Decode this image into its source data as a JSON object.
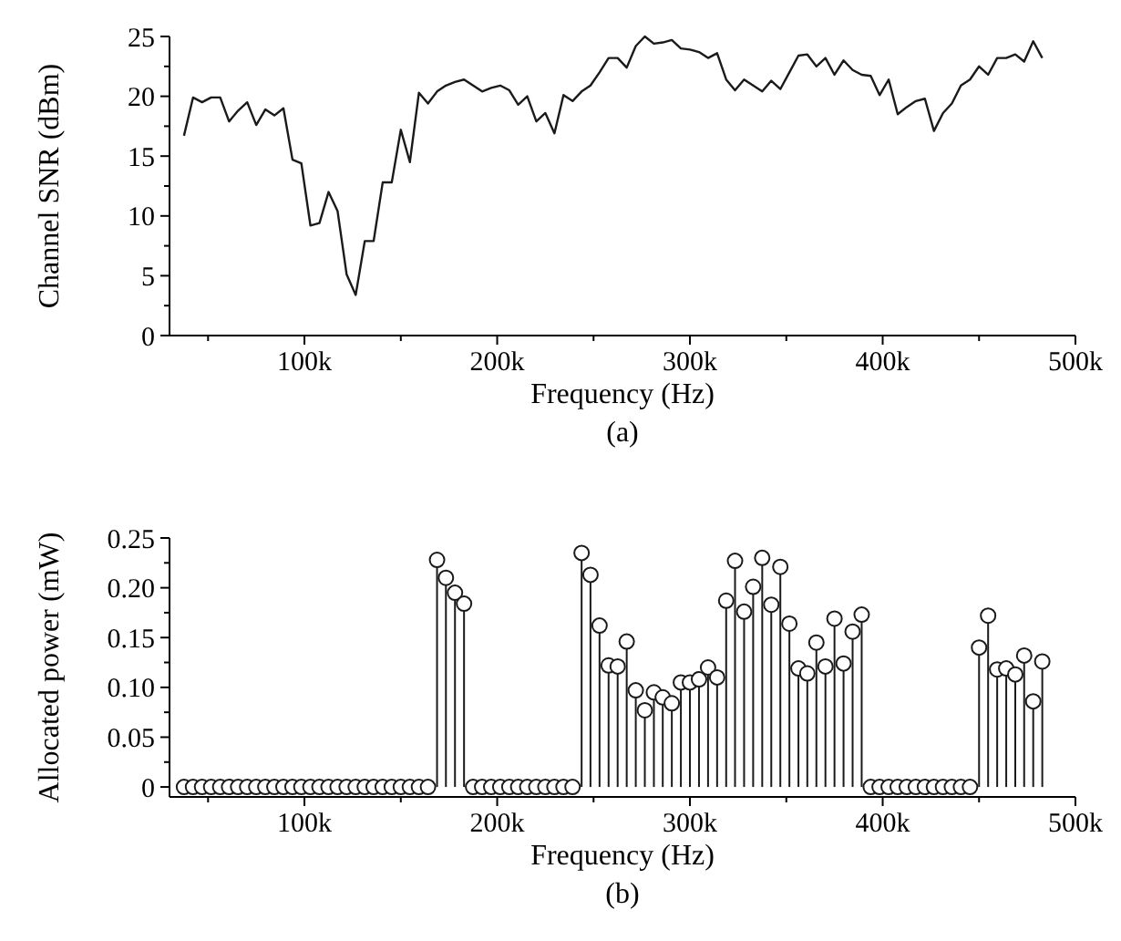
{
  "chart_data": [
    {
      "type": "line",
      "xlabel": "Frequency (Hz)",
      "ylabel": "Channel SNR (dBm)",
      "annotations": [
        "(a)"
      ],
      "marker": "none",
      "line_style": "solid",
      "x": [
        37500,
        42200,
        46900,
        51600,
        56300,
        60900,
        65600,
        70300,
        75000,
        79700,
        84400,
        89100,
        93800,
        98400,
        103100,
        107800,
        112500,
        117200,
        121900,
        126600,
        131300,
        135900,
        140600,
        145300,
        150000,
        154700,
        159400,
        164100,
        168800,
        173400,
        178100,
        182800,
        187500,
        192200,
        196900,
        201600,
        206300,
        210900,
        215600,
        220300,
        225000,
        229700,
        234400,
        239100,
        243800,
        248400,
        253100,
        257800,
        262500,
        267200,
        271900,
        276600,
        281300,
        285900,
        290600,
        295300,
        300000,
        304700,
        309400,
        314100,
        318800,
        323400,
        328100,
        332800,
        337500,
        342200,
        346900,
        351600,
        356300,
        360900,
        365600,
        370300,
        375000,
        379700,
        384400,
        389100,
        393800,
        398400,
        403100,
        407800,
        412500,
        417200,
        421900,
        426600,
        431300,
        435900,
        440600,
        445300,
        450000,
        454700,
        459400,
        464100,
        468800,
        473400,
        478100,
        482800
      ],
      "series": [
        {
          "color": "#1a1a1a",
          "values": [
            16.7,
            19.9,
            19.5,
            19.9,
            19.9,
            17.9,
            18.8,
            19.5,
            17.6,
            18.9,
            18.4,
            19.0,
            14.7,
            14.4,
            9.2,
            9.4,
            12.0,
            10.4,
            5.1,
            3.4,
            7.9,
            7.9,
            12.8,
            12.8,
            17.2,
            14.5,
            20.3,
            19.4,
            20.4,
            20.9,
            21.2,
            21.4,
            20.9,
            20.4,
            20.7,
            20.9,
            20.5,
            19.3,
            20.0,
            17.9,
            18.6,
            16.9,
            20.1,
            19.6,
            20.4,
            20.9,
            22.0,
            23.2,
            23.2,
            22.4,
            24.2,
            25.0,
            24.4,
            24.5,
            24.7,
            24.0,
            23.9,
            23.7,
            23.2,
            23.6,
            21.4,
            20.5,
            21.4,
            20.9,
            20.4,
            21.3,
            20.6,
            22.0,
            23.4,
            23.5,
            22.5,
            23.2,
            21.8,
            23.0,
            22.2,
            21.8,
            21.7,
            20.1,
            21.4,
            18.5,
            19.1,
            19.6,
            19.8,
            17.1,
            18.6,
            19.4,
            20.9,
            21.4,
            22.5,
            21.8,
            23.2,
            23.2,
            23.5,
            22.9,
            24.6,
            23.2
          ]
        }
      ],
      "xlim": [
        30000,
        500000
      ],
      "xticks": [
        {
          "value": 50000,
          "label": null
        },
        {
          "value": 100000,
          "label": "100k"
        },
        {
          "value": 150000,
          "label": null
        },
        {
          "value": 200000,
          "label": "200k"
        },
        {
          "value": 250000,
          "label": null
        },
        {
          "value": 300000,
          "label": "300k"
        },
        {
          "value": 350000,
          "label": null
        },
        {
          "value": 400000,
          "label": "400k"
        },
        {
          "value": 450000,
          "label": null
        },
        {
          "value": 500000,
          "label": "500k"
        }
      ],
      "ylim": [
        0,
        25
      ],
      "yticks": [
        0,
        {
          "value": 2.5,
          "label": null
        },
        5,
        {
          "value": 7.5,
          "label": null
        },
        10,
        {
          "value": 12.5,
          "label": null
        },
        15,
        {
          "value": 17.5,
          "label": null
        },
        20,
        {
          "value": 22.5,
          "label": null
        },
        25
      ]
    },
    {
      "type": "lollipop",
      "xlabel": "Frequency (Hz)",
      "ylabel": "Allocated power (mW)",
      "annotations": [
        "(b)"
      ],
      "marker": "circle",
      "x": [
        37500,
        42200,
        46900,
        51600,
        56300,
        60900,
        65600,
        70300,
        75000,
        79700,
        84400,
        89100,
        93800,
        98400,
        103100,
        107800,
        112500,
        117200,
        121900,
        126600,
        131300,
        135900,
        140600,
        145300,
        150000,
        154700,
        159400,
        164100,
        168800,
        173400,
        178100,
        182800,
        187500,
        192200,
        196900,
        201600,
        206300,
        210900,
        215600,
        220300,
        225000,
        229700,
        234400,
        239100,
        243800,
        248400,
        253100,
        257800,
        262500,
        267200,
        271900,
        276600,
        281300,
        285900,
        290600,
        295300,
        300000,
        304700,
        309400,
        314100,
        318800,
        323400,
        328100,
        332800,
        337500,
        342200,
        346900,
        351600,
        356300,
        360900,
        365600,
        370300,
        375000,
        379700,
        384400,
        389100,
        393800,
        398400,
        403100,
        407800,
        412500,
        417200,
        421900,
        426600,
        431300,
        435900,
        440600,
        445300,
        450000,
        454700,
        459400,
        464100,
        468800,
        473400,
        478100,
        482800
      ],
      "series": [
        {
          "color": "#1a1a1a",
          "values": [
            0,
            0,
            0,
            0,
            0,
            0,
            0,
            0,
            0,
            0,
            0,
            0,
            0,
            0,
            0,
            0,
            0,
            0,
            0,
            0,
            0,
            0,
            0,
            0,
            0,
            0,
            0,
            0,
            0.228,
            0.21,
            0.195,
            0.184,
            0,
            0,
            0,
            0,
            0,
            0,
            0,
            0,
            0,
            0,
            0,
            0,
            0.235,
            0.213,
            0.162,
            0.122,
            0.121,
            0.146,
            0.097,
            0.077,
            0.095,
            0.09,
            0.084,
            0.105,
            0.105,
            0.108,
            0.12,
            0.11,
            0.187,
            0.227,
            0.176,
            0.201,
            0.23,
            0.183,
            0.221,
            0.164,
            0.119,
            0.114,
            0.145,
            0.121,
            0.169,
            0.124,
            0.156,
            0.173,
            0,
            0,
            0,
            0,
            0,
            0,
            0,
            0,
            0,
            0,
            0,
            0,
            0.14,
            0.172,
            0.118,
            0.119,
            0.113,
            0.132,
            0.086,
            0.126
          ]
        }
      ],
      "xlim": [
        30000,
        500000
      ],
      "xticks": [
        {
          "value": 50000,
          "label": null
        },
        {
          "value": 100000,
          "label": "100k"
        },
        {
          "value": 150000,
          "label": null
        },
        {
          "value": 200000,
          "label": "200k"
        },
        {
          "value": 250000,
          "label": null
        },
        {
          "value": 300000,
          "label": "300k"
        },
        {
          "value": 350000,
          "label": null
        },
        {
          "value": 400000,
          "label": "400k"
        },
        {
          "value": 450000,
          "label": null
        },
        {
          "value": 500000,
          "label": "500k"
        }
      ],
      "ylim": [
        -0.01,
        0.25
      ],
      "yticks": [
        {
          "value": 0,
          "label": "0"
        },
        {
          "value": 0.025,
          "label": null
        },
        {
          "value": 0.05,
          "label": "0.05"
        },
        {
          "value": 0.075,
          "label": null
        },
        {
          "value": 0.1,
          "label": "0.10"
        },
        {
          "value": 0.125,
          "label": null
        },
        {
          "value": 0.15,
          "label": "0.15"
        },
        {
          "value": 0.175,
          "label": null
        },
        {
          "value": 0.2,
          "label": "0.20"
        },
        {
          "value": 0.225,
          "label": null
        },
        {
          "value": 0.25,
          "label": "0.25"
        }
      ]
    }
  ]
}
